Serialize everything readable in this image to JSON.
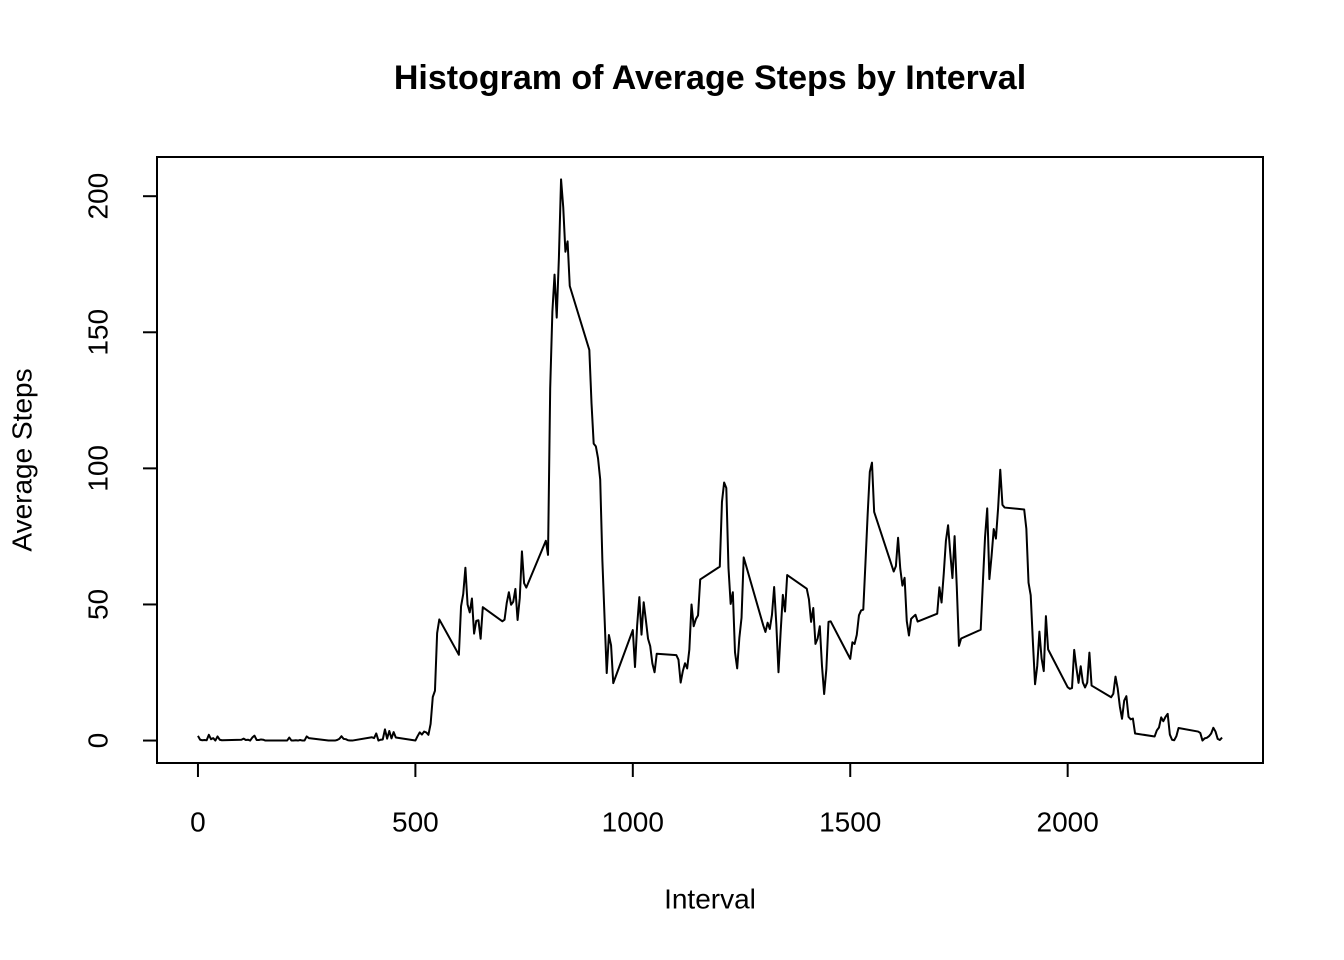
{
  "chart_data": {
    "type": "line",
    "title": "Histogram of Average Steps by Interval",
    "x_label": "Interval",
    "y_label": "Average Steps",
    "x": [
      0,
      5,
      10,
      15,
      20,
      25,
      30,
      35,
      40,
      45,
      50,
      55,
      100,
      105,
      110,
      115,
      120,
      125,
      130,
      135,
      140,
      145,
      150,
      155,
      200,
      205,
      210,
      215,
      220,
      225,
      230,
      235,
      240,
      245,
      250,
      255,
      300,
      305,
      310,
      315,
      320,
      325,
      330,
      335,
      340,
      345,
      350,
      355,
      400,
      405,
      410,
      415,
      420,
      425,
      430,
      435,
      440,
      445,
      450,
      455,
      500,
      505,
      510,
      515,
      520,
      525,
      530,
      535,
      540,
      545,
      550,
      555,
      600,
      605,
      610,
      615,
      620,
      625,
      630,
      635,
      640,
      645,
      650,
      655,
      700,
      705,
      710,
      715,
      720,
      725,
      730,
      735,
      740,
      745,
      750,
      755,
      800,
      805,
      810,
      815,
      820,
      825,
      830,
      835,
      840,
      845,
      850,
      855,
      900,
      905,
      910,
      915,
      920,
      925,
      930,
      935,
      940,
      945,
      950,
      955,
      1000,
      1005,
      1010,
      1015,
      1020,
      1025,
      1030,
      1035,
      1040,
      1045,
      1050,
      1055,
      1100,
      1105,
      1110,
      1115,
      1120,
      1125,
      1130,
      1135,
      1140,
      1145,
      1150,
      1155,
      1200,
      1205,
      1210,
      1215,
      1220,
      1225,
      1230,
      1235,
      1240,
      1245,
      1250,
      1255,
      1300,
      1305,
      1310,
      1315,
      1320,
      1325,
      1330,
      1335,
      1340,
      1345,
      1350,
      1355,
      1400,
      1405,
      1410,
      1415,
      1420,
      1425,
      1430,
      1435,
      1440,
      1445,
      1450,
      1455,
      1500,
      1505,
      1510,
      1515,
      1520,
      1525,
      1530,
      1535,
      1540,
      1545,
      1550,
      1555,
      1600,
      1605,
      1610,
      1615,
      1620,
      1625,
      1630,
      1635,
      1640,
      1645,
      1650,
      1655,
      1700,
      1705,
      1710,
      1715,
      1720,
      1725,
      1730,
      1735,
      1740,
      1745,
      1750,
      1755,
      1800,
      1805,
      1810,
      1815,
      1820,
      1825,
      1830,
      1835,
      1840,
      1845,
      1850,
      1855,
      1900,
      1905,
      1910,
      1915,
      1920,
      1925,
      1930,
      1935,
      1940,
      1945,
      1950,
      1955,
      2000,
      2005,
      2010,
      2015,
      2020,
      2025,
      2030,
      2035,
      2040,
      2045,
      2050,
      2055,
      2100,
      2105,
      2110,
      2115,
      2120,
      2125,
      2130,
      2135,
      2140,
      2145,
      2150,
      2155,
      2200,
      2205,
      2210,
      2215,
      2220,
      2225,
      2230,
      2235,
      2240,
      2245,
      2250,
      2255,
      2300,
      2305,
      2310,
      2315,
      2320,
      2325,
      2330,
      2335,
      2340,
      2345,
      2350,
      2355
    ],
    "series": [
      {
        "name": "Average Steps",
        "color": "#000000",
        "values": [
          1.7,
          0.3,
          0.1,
          0.2,
          0.1,
          2.1,
          0.5,
          0.9,
          0,
          1.5,
          0.3,
          0.1,
          0.3,
          0.7,
          0.2,
          0.3,
          0,
          1.1,
          1.8,
          0.2,
          0.2,
          0.4,
          0.3,
          0,
          0,
          0,
          1.1,
          0,
          0,
          0.1,
          0,
          0.2,
          0,
          0,
          1.5,
          0.9,
          0,
          0,
          0,
          0,
          0.2,
          0.6,
          1.6,
          0.6,
          0.5,
          0.1,
          0,
          0,
          1.2,
          0.9,
          2.6,
          0,
          0.3,
          0.4,
          4.1,
          0.7,
          3.5,
          0.8,
          3.1,
          1.1,
          0,
          1.6,
          3,
          2.2,
          3.3,
          3,
          2.1,
          6.1,
          16,
          18.3,
          39.5,
          44.5,
          31.5,
          49.3,
          53.8,
          63.5,
          50,
          47.1,
          52.2,
          39.3,
          44,
          44.2,
          37.4,
          49,
          43.8,
          44.4,
          50.5,
          54.5,
          49.9,
          51,
          55.7,
          44.3,
          52.3,
          69.5,
          57.8,
          56.2,
          73.4,
          68.2,
          129.4,
          157.5,
          171.2,
          155.4,
          177.3,
          206.2,
          195.9,
          179.6,
          183.4,
          167,
          143.5,
          124,
          109.1,
          108.1,
          103.7,
          95.9,
          66.2,
          45.2,
          24.8,
          38.8,
          35,
          21.1,
          40.6,
          27,
          42.4,
          52.7,
          38.9,
          50.8,
          44.3,
          37.4,
          34.7,
          28.3,
          25.1,
          31.9,
          31.4,
          29.7,
          21.3,
          25.5,
          28.4,
          26.5,
          33.4,
          50,
          42,
          44.6,
          46,
          59.2,
          63.9,
          87.7,
          94.8,
          92.8,
          63.4,
          50.2,
          54.5,
          32.4,
          26.5,
          37.7,
          45.1,
          67.3,
          42.3,
          39.9,
          43.3,
          41,
          46.2,
          56.4,
          42.8,
          25.1,
          40,
          53.5,
          47.4,
          60.8,
          55.8,
          51.9,
          43.6,
          48.7,
          35.5,
          37.5,
          42,
          27.5,
          17.1,
          26.1,
          43.6,
          43.8,
          30,
          36.1,
          35.5,
          38.8,
          46,
          47.8,
          48.1,
          65.3,
          82.9,
          98.7,
          102.1,
          84,
          62.1,
          64.1,
          74.5,
          63.2,
          56.9,
          59.8,
          43.9,
          38.6,
          44.7,
          45.5,
          46.2,
          43.7,
          46.6,
          56.3,
          50.7,
          61.2,
          73.4,
          79.1,
          68.9,
          59.7,
          75.1,
          56.5,
          34.8,
          37.5,
          40.7,
          58,
          74.7,
          85.3,
          59.3,
          67.8,
          77.7,
          74.2,
          85.3,
          99.5,
          86.6,
          85.6,
          84.9,
          77.8,
          58,
          53.4,
          36.3,
          20.7,
          27.4,
          40,
          30.2,
          25.5,
          45.7,
          33.5,
          19.6,
          19,
          19.3,
          33.3,
          26.8,
          21.2,
          27.3,
          21.3,
          19.5,
          21.3,
          32.3,
          20.2,
          15.9,
          17.2,
          23.5,
          19.2,
          12.5,
          8,
          14.7,
          16.3,
          8.7,
          7.8,
          8.1,
          2.6,
          1.5,
          3.7,
          4.8,
          8.5,
          7.1,
          8.7,
          9.8,
          2.2,
          0.3,
          0.1,
          1.6,
          4.6,
          3.3,
          2.8,
          0,
          0.8,
          1,
          1.6,
          2.6,
          4.7,
          3.3,
          0.6,
          0.2,
          1.1
        ]
      }
    ],
    "xlim": [
      -94.2,
      2449.2
    ],
    "xticks": [
      0,
      500,
      1000,
      1500,
      2000
    ],
    "ylim": [
      -8.25,
      214.4
    ],
    "yticks": [
      0,
      50,
      100,
      150,
      200
    ],
    "grid": false
  }
}
